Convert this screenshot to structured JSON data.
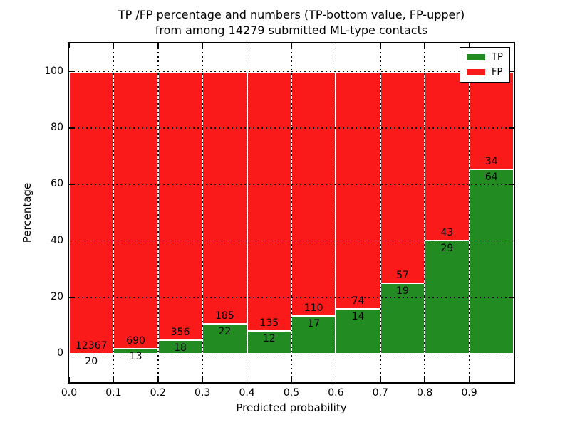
{
  "title": {
    "line1": "TP /FP percentage and numbers (TP-bottom value, FP-upper)",
    "line2": "from among 14279 submitted ML-type contacts"
  },
  "axes": {
    "xlabel": "Predicted probability",
    "ylabel": "Percentage",
    "x_ticks": [
      "0.0",
      "0.1",
      "0.2",
      "0.3",
      "0.4",
      "0.5",
      "0.6",
      "0.7",
      "0.8",
      "0.9"
    ],
    "y_ticks": [
      "0",
      "20",
      "40",
      "60",
      "80",
      "100"
    ]
  },
  "legend": {
    "items": [
      {
        "label": "TP",
        "color": "#228b22"
      },
      {
        "label": "FP",
        "color": "#fa1a1a"
      }
    ]
  },
  "colors": {
    "tp": "#228b22",
    "fp": "#fa1a1a",
    "grid": "#000000",
    "background": "#ffffff"
  },
  "chart_data": {
    "type": "bar",
    "stacked": true,
    "normalized_to_percent": true,
    "title": "TP /FP percentage and numbers (TP-bottom value, FP-upper) from among 14279 submitted ML-type contacts",
    "xlabel": "Predicted probability",
    "ylabel": "Percentage",
    "total_contacts": 14279,
    "x_bin_start": [
      0.0,
      0.1,
      0.2,
      0.3,
      0.4,
      0.5,
      0.6,
      0.7,
      0.8,
      0.9
    ],
    "bin_width": 0.1,
    "series": [
      {
        "name": "TP",
        "color": "#228b22",
        "counts": [
          20,
          13,
          18,
          22,
          12,
          17,
          14,
          19,
          29,
          64
        ]
      },
      {
        "name": "FP",
        "color": "#fa1a1a",
        "counts": [
          12367,
          690,
          356,
          185,
          135,
          110,
          74,
          57,
          43,
          34
        ]
      }
    ],
    "tp_percent": [
      0.16,
      1.85,
      4.81,
      10.63,
      8.16,
      13.39,
      15.91,
      25.0,
      40.28,
      65.31
    ],
    "ylim": [
      -10,
      110
    ],
    "xlim": [
      0.0,
      1.0
    ],
    "grid": true,
    "legend_position": "upper right"
  }
}
